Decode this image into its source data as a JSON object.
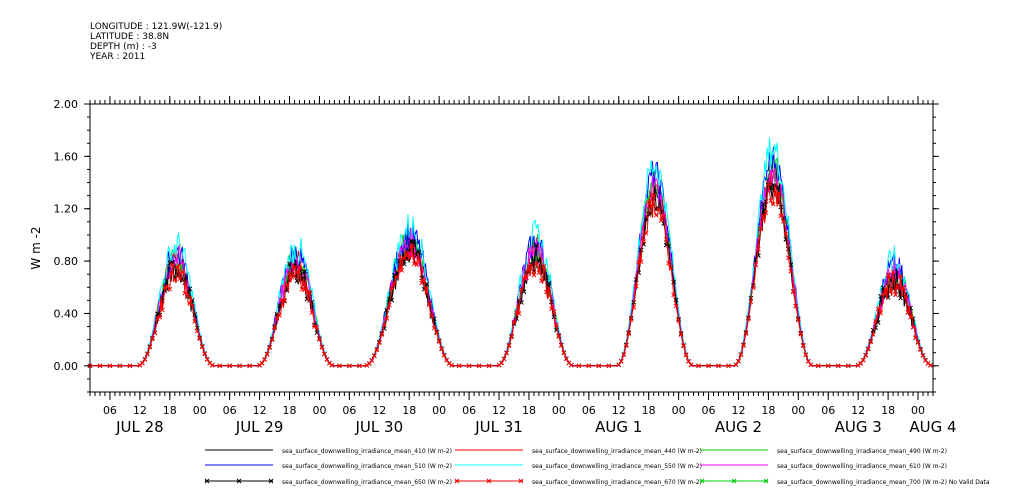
{
  "header": {
    "longitude": "LONGITUDE : 121.9W(-121.9)",
    "latitude": "LATITUDE : 38.8N",
    "depth": "DEPTH (m) : -3",
    "year": "YEAR : 2011"
  },
  "chart_data": {
    "type": "line",
    "title": "",
    "ylabel": "W m-2",
    "xlabel": "",
    "ylim": [
      -0.2,
      2.0
    ],
    "y_ticks": [
      0.0,
      0.4,
      0.8,
      1.2,
      1.6,
      2.0
    ],
    "y_tick_labels": [
      "0.00",
      "0.40",
      "0.80",
      "1.20",
      "1.60",
      "2.00"
    ],
    "x_hour_ticks": [
      {
        "h": 6,
        "label": "06"
      },
      {
        "h": 12,
        "label": "12"
      },
      {
        "h": 18,
        "label": "18"
      },
      {
        "h": 24,
        "label": "00"
      },
      {
        "h": 30,
        "label": "06"
      },
      {
        "h": 36,
        "label": "12"
      },
      {
        "h": 42,
        "label": "18"
      },
      {
        "h": 48,
        "label": "00"
      },
      {
        "h": 54,
        "label": "06"
      },
      {
        "h": 60,
        "label": "12"
      },
      {
        "h": 66,
        "label": "18"
      },
      {
        "h": 72,
        "label": "00"
      },
      {
        "h": 78,
        "label": "06"
      },
      {
        "h": 84,
        "label": "12"
      },
      {
        "h": 90,
        "label": "18"
      },
      {
        "h": 96,
        "label": "00"
      },
      {
        "h": 102,
        "label": "06"
      },
      {
        "h": 108,
        "label": "12"
      },
      {
        "h": 114,
        "label": "18"
      },
      {
        "h": 120,
        "label": "00"
      },
      {
        "h": 126,
        "label": "06"
      },
      {
        "h": 132,
        "label": "12"
      },
      {
        "h": 138,
        "label": "18"
      },
      {
        "h": 144,
        "label": "00"
      },
      {
        "h": 150,
        "label": "06"
      },
      {
        "h": 156,
        "label": "12"
      },
      {
        "h": 162,
        "label": "18"
      },
      {
        "h": 168,
        "label": "00"
      }
    ],
    "x_day_labels": [
      {
        "h": 12,
        "label": "JUL 28"
      },
      {
        "h": 36,
        "label": "JUL 29"
      },
      {
        "h": 60,
        "label": "JUL 30"
      },
      {
        "h": 84,
        "label": "JUL 31"
      },
      {
        "h": 108,
        "label": "AUG  1"
      },
      {
        "h": 132,
        "label": "AUG  2"
      },
      {
        "h": 156,
        "label": "AUG  3"
      },
      {
        "h": 171,
        "label": "AUG  4"
      }
    ],
    "x_range_hours": [
      2,
      171
    ],
    "days": [
      {
        "start": 11.5,
        "end": 27,
        "peak": 0.78,
        "peak_at": 20
      },
      {
        "start": 35.5,
        "end": 51,
        "peak": 0.76,
        "peak_at": 44
      },
      {
        "start": 57,
        "end": 75,
        "peak": 0.92,
        "peak_at": 69
      },
      {
        "start": 83.5,
        "end": 99,
        "peak": 0.84,
        "peak_at": 92
      },
      {
        "start": 107.5,
        "end": 123,
        "peak": 1.32,
        "peak_at": 114
      },
      {
        "start": 131,
        "end": 147,
        "peak": 1.42,
        "peak_at": 138
      },
      {
        "start": 155.5,
        "end": 171,
        "peak": 0.68,
        "peak_at": 162
      }
    ],
    "series": [
      {
        "name": "sea_surface_downwelling_irradiance_mean_410 (W m-2)",
        "color": "#000000",
        "scale": 1.0,
        "marker": "none"
      },
      {
        "name": "sea_surface_downwelling_irradiance_mean_440 (W m-2)",
        "color": "#ff0000",
        "scale": 1.03,
        "marker": "none"
      },
      {
        "name": "sea_surface_downwelling_irradiance_mean_490 (W m-2)",
        "color": "#00cc00",
        "scale": 1.08,
        "marker": "none"
      },
      {
        "name": "sea_surface_downwelling_irradiance_mean_510 (W m-2)",
        "color": "#0000ff",
        "scale": 1.12,
        "marker": "none"
      },
      {
        "name": "sea_surface_downwelling_irradiance_mean_550 (W m-2)",
        "color": "#00ffff",
        "scale": 1.18,
        "marker": "none"
      },
      {
        "name": "sea_surface_downwelling_irradiance_mean_610 (W m-2)",
        "color": "#ff00ff",
        "scale": 1.05,
        "marker": "none"
      },
      {
        "name": "sea_surface_downwelling_irradiance_mean_650 (W m-2)",
        "color": "#000000",
        "scale": 0.98,
        "marker": "x"
      },
      {
        "name": "sea_surface_downwelling_irradiance_mean_670 (W m-2)",
        "color": "#ff0000",
        "scale": 0.95,
        "marker": "x"
      },
      {
        "name": "sea_surface_downwelling_irradiance_mean_700 (W m-2) No Valid Data",
        "color": "#00cc00",
        "scale": 0,
        "marker": "x"
      }
    ]
  }
}
